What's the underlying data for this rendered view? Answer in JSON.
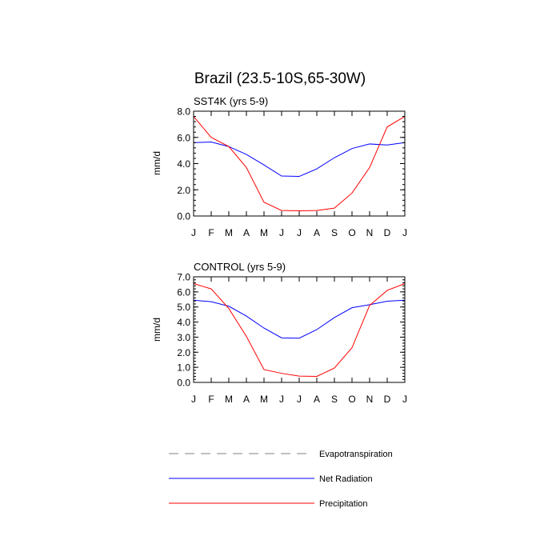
{
  "figure": {
    "title": "Brazil (23.5-10S,65-30W)"
  },
  "colors": {
    "evapotranspiration": "#808080",
    "net_radiation": "#0000ff",
    "precipitation": "#ff0000",
    "axes": "#000000"
  },
  "legend": {
    "placement": "bottom",
    "items": [
      {
        "label": "Evapotranspiration",
        "style": "dashed",
        "color": "#808080"
      },
      {
        "label": "Net Radiation",
        "style": "solid",
        "color": "#0000ff"
      },
      {
        "label": "Precipitation",
        "style": "solid",
        "color": "#ff0000"
      }
    ]
  },
  "chart_data": [
    {
      "type": "line",
      "title": "SST4K (yrs 5-9)",
      "xlabel": "",
      "ylabel": "mm/d",
      "categories": [
        "J",
        "F",
        "M",
        "A",
        "M",
        "J",
        "J",
        "A",
        "S",
        "O",
        "N",
        "D",
        "J"
      ],
      "ylim": [
        0,
        8
      ],
      "yticks": [
        "0.0",
        "2.0",
        "4.0",
        "6.0",
        "8.0"
      ],
      "grid": false,
      "series": [
        {
          "name": "Net Radiation",
          "color": "#0000ff",
          "values": [
            5.6,
            5.65,
            5.3,
            4.7,
            3.9,
            3.05,
            3.02,
            3.6,
            4.45,
            5.15,
            5.5,
            5.42,
            5.6
          ]
        },
        {
          "name": "Precipitation",
          "color": "#ff0000",
          "values": [
            7.6,
            6.0,
            5.3,
            3.7,
            1.05,
            0.42,
            0.4,
            0.42,
            0.6,
            1.75,
            3.7,
            6.8,
            7.6
          ]
        }
      ]
    },
    {
      "type": "line",
      "title": "CONTROL (yrs 5-9)",
      "xlabel": "",
      "ylabel": "mm/d",
      "categories": [
        "J",
        "F",
        "M",
        "A",
        "M",
        "J",
        "J",
        "A",
        "S",
        "O",
        "N",
        "D",
        "J"
      ],
      "ylim": [
        0,
        7
      ],
      "yticks": [
        "0.0",
        "1.0",
        "2.0",
        "3.0",
        "4.0",
        "5.0",
        "6.0",
        "7.0"
      ],
      "grid": false,
      "series": [
        {
          "name": "Net Radiation",
          "color": "#0000ff",
          "values": [
            5.45,
            5.35,
            5.05,
            4.4,
            3.6,
            2.95,
            2.93,
            3.5,
            4.3,
            4.95,
            5.15,
            5.38,
            5.45
          ]
        },
        {
          "name": "Precipitation",
          "color": "#ff0000",
          "values": [
            6.55,
            6.2,
            4.9,
            3.05,
            0.85,
            0.6,
            0.42,
            0.4,
            0.95,
            2.3,
            5.1,
            6.1,
            6.55
          ]
        }
      ]
    }
  ]
}
